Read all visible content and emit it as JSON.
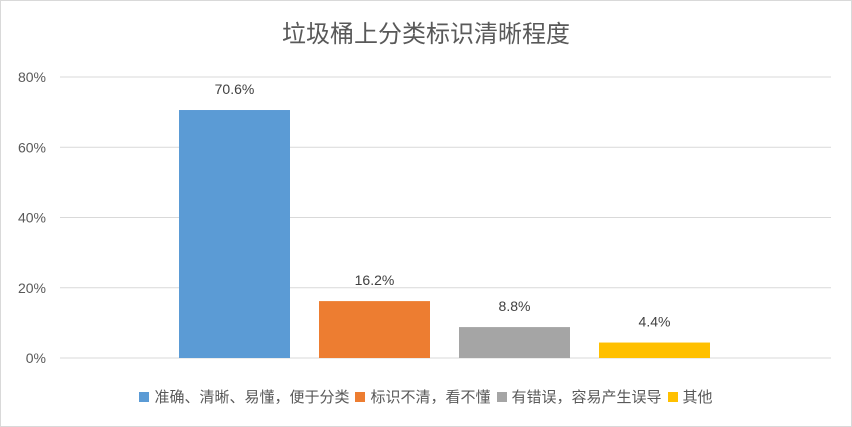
{
  "chart_data": {
    "type": "bar",
    "title": "垃圾桶上分类标识清晰程度",
    "xlabel": "",
    "ylabel": "",
    "ylim": [
      0,
      80
    ],
    "yticks": [
      "0%",
      "20%",
      "40%",
      "60%",
      "80%"
    ],
    "grid": true,
    "legend_position": "bottom",
    "series": [
      {
        "name": "准确、清晰、易懂，便于分类",
        "value": 70.6,
        "label": "70.6%",
        "color": "#5B9BD5"
      },
      {
        "name": "标识不清，看不懂",
        "value": 16.2,
        "label": "16.2%",
        "color": "#ED7D31"
      },
      {
        "name": "有错误，容易产生误导",
        "value": 8.8,
        "label": "8.8%",
        "color": "#A5A5A5"
      },
      {
        "name": "其他",
        "value": 4.4,
        "label": "4.4%",
        "color": "#FFC000"
      }
    ]
  }
}
